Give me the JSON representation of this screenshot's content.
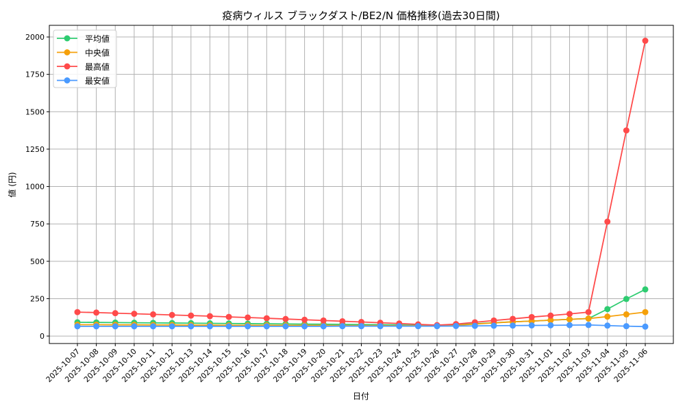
{
  "chart_data": {
    "type": "line",
    "title": "疫病ウィルス ブラックダスト/BE2/N 価格推移(過去30日間)",
    "xlabel": "日付",
    "ylabel": "値 (円)",
    "ylim": [
      -50,
      2078
    ],
    "yticks": [
      0,
      250,
      500,
      750,
      1000,
      1250,
      1500,
      1750,
      2000
    ],
    "grid": true,
    "legend_position": "top-left",
    "x": [
      "2025-10-07",
      "2025-10-08",
      "2025-10-09",
      "2025-10-10",
      "2025-10-11",
      "2025-10-12",
      "2025-10-13",
      "2025-10-14",
      "2025-10-15",
      "2025-10-16",
      "2025-10-17",
      "2025-10-18",
      "2025-10-19",
      "2025-10-20",
      "2025-10-21",
      "2025-10-22",
      "2025-10-23",
      "2025-10-24",
      "2025-10-25",
      "2025-10-26",
      "2025-10-27",
      "2025-10-28",
      "2025-10-29",
      "2025-10-30",
      "2025-10-31",
      "2025-11-01",
      "2025-11-02",
      "2025-11-03",
      "2025-11-04",
      "2025-11-05",
      "2025-11-06"
    ],
    "series": [
      {
        "name": "平均値",
        "color": "#2ecc71",
        "values": [
          92,
          91,
          90,
          89,
          88,
          87,
          86,
          85,
          84,
          83,
          82,
          81,
          80,
          79,
          78,
          77,
          76,
          74,
          72,
          70,
          75,
          82,
          89,
          95,
          100,
          106,
          112,
          117,
          180,
          248,
          312
        ]
      },
      {
        "name": "中央値",
        "color": "#f5a00a",
        "values": [
          76,
          76,
          75,
          75,
          74,
          74,
          73,
          73,
          72,
          72,
          72,
          71,
          71,
          71,
          70,
          70,
          70,
          69,
          69,
          68,
          72,
          80,
          88,
          95,
          100,
          106,
          112,
          117,
          130,
          145,
          160
        ]
      },
      {
        "name": "最高値",
        "color": "#ff4a4a",
        "values": [
          160,
          157,
          153,
          149,
          145,
          141,
          137,
          133,
          128,
          124,
          119,
          114,
          109,
          104,
          99,
          94,
          89,
          84,
          78,
          73,
          80,
          92,
          104,
          115,
          127,
          137,
          148,
          160,
          765,
          1375,
          1975
        ]
      },
      {
        "name": "最安値",
        "color": "#4a9aff",
        "values": [
          65,
          65,
          65,
          65,
          65,
          65,
          65,
          65,
          65,
          65,
          65,
          65,
          65,
          65,
          66,
          66,
          66,
          66,
          66,
          66,
          67,
          68,
          69,
          70,
          71,
          72,
          73,
          74,
          70,
          66,
          63
        ]
      }
    ]
  }
}
